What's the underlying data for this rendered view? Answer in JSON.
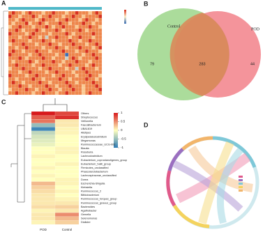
{
  "chart_data": [
    {
      "type": "heatmap",
      "label": "A",
      "clim": [
        -2,
        2
      ],
      "matrix": [
        [
          1,
          2,
          1,
          1,
          0,
          1,
          2,
          1,
          1,
          1,
          0,
          1,
          1,
          2,
          1,
          1,
          1,
          0,
          1,
          1,
          2,
          1,
          1,
          1,
          0,
          1,
          2,
          1
        ],
        [
          2,
          1,
          1,
          0,
          1,
          1,
          1,
          2,
          1,
          0,
          1,
          1,
          2,
          1,
          1,
          1,
          0,
          1,
          1,
          2,
          1,
          1,
          0,
          1,
          1,
          1,
          1,
          2
        ],
        [
          1,
          1,
          0,
          1,
          2,
          1,
          1,
          1,
          0,
          1,
          2,
          1,
          1,
          1,
          0,
          1,
          1,
          2,
          1,
          1,
          1,
          0,
          1,
          2,
          1,
          1,
          0,
          1
        ],
        [
          1,
          0,
          1,
          1,
          1,
          2,
          0,
          1,
          1,
          2,
          1,
          0,
          1,
          1,
          1,
          2,
          1,
          1,
          0,
          1,
          1,
          1,
          2,
          1,
          1,
          0,
          1,
          1
        ],
        [
          0,
          1,
          1,
          2,
          1,
          1,
          1,
          0,
          1,
          1,
          1,
          2,
          1,
          0,
          1,
          1,
          2,
          1,
          1,
          1,
          0,
          1,
          1,
          1,
          2,
          1,
          1,
          0
        ],
        [
          1,
          1,
          2,
          1,
          0,
          1,
          1,
          1,
          2,
          1,
          0,
          1,
          1,
          1,
          2,
          1,
          0,
          1,
          1,
          1,
          1,
          2,
          1,
          0,
          1,
          1,
          1,
          1
        ],
        [
          2,
          1,
          1,
          1,
          1,
          0,
          1,
          2,
          1,
          1,
          1,
          1,
          0,
          1,
          1,
          1,
          1,
          2,
          1,
          0,
          1,
          1,
          1,
          1,
          1,
          2,
          1,
          1
        ],
        [
          1,
          1,
          1,
          0,
          1,
          1,
          2,
          1,
          1,
          0,
          1,
          -1,
          1,
          1,
          2,
          1,
          1,
          1,
          0,
          1,
          1,
          2,
          1,
          1,
          1,
          0,
          1,
          1
        ],
        [
          1,
          2,
          1,
          1,
          1,
          1,
          0,
          1,
          1,
          1,
          2,
          1,
          1,
          0,
          1,
          1,
          1,
          1,
          2,
          1,
          1,
          0,
          1,
          1,
          2,
          1,
          1,
          1
        ],
        [
          0,
          1,
          1,
          1,
          2,
          1,
          1,
          1,
          0,
          1,
          1,
          1,
          2,
          1,
          1,
          0,
          1,
          1,
          1,
          2,
          1,
          1,
          1,
          0,
          1,
          1,
          2,
          1
        ],
        [
          1,
          1,
          0,
          1,
          1,
          2,
          1,
          1,
          1,
          1,
          0,
          1,
          1,
          1,
          2,
          1,
          1,
          0,
          1,
          1,
          1,
          2,
          1,
          1,
          1,
          0,
          1,
          2
        ],
        [
          1,
          2,
          1,
          1,
          0,
          1,
          1,
          1,
          2,
          1,
          1,
          1,
          0,
          1,
          1,
          1,
          2,
          1,
          1,
          1,
          0,
          1,
          1,
          2,
          1,
          1,
          1,
          0
        ],
        [
          2,
          1,
          1,
          1,
          1,
          1,
          0,
          1,
          1,
          2,
          1,
          1,
          1,
          1,
          0,
          1,
          1,
          -2,
          1,
          1,
          1,
          1,
          0,
          1,
          1,
          2,
          1,
          1
        ],
        [
          1,
          1,
          1,
          2,
          1,
          0,
          1,
          1,
          1,
          1,
          2,
          1,
          1,
          0,
          1,
          1,
          1,
          -1,
          1,
          2,
          1,
          0,
          1,
          1,
          1,
          1,
          2,
          1
        ],
        [
          1,
          0,
          1,
          1,
          1,
          1,
          2,
          1,
          0,
          1,
          1,
          1,
          1,
          2,
          1,
          1,
          0,
          1,
          1,
          1,
          2,
          1,
          1,
          1,
          0,
          1,
          1,
          1
        ],
        [
          1,
          1,
          2,
          1,
          1,
          1,
          1,
          0,
          1,
          1,
          2,
          1,
          1,
          1,
          1,
          0,
          1,
          1,
          2,
          1,
          1,
          1,
          1,
          0,
          1,
          2,
          1,
          1
        ],
        [
          0,
          1,
          1,
          1,
          2,
          1,
          1,
          1,
          1,
          0,
          1,
          1,
          2,
          1,
          1,
          1,
          1,
          0,
          1,
          1,
          -1,
          1,
          2,
          1,
          1,
          1,
          0,
          1
        ],
        [
          1,
          1,
          1,
          0,
          1,
          1,
          2,
          1,
          1,
          1,
          1,
          0,
          1,
          1,
          2,
          1,
          1,
          1,
          1,
          0,
          1,
          1,
          1,
          2,
          1,
          1,
          1,
          1
        ],
        [
          2,
          1,
          1,
          1,
          1,
          0,
          1,
          1,
          2,
          1,
          1,
          1,
          1,
          0,
          1,
          1,
          2,
          1,
          1,
          1,
          0,
          1,
          1,
          1,
          2,
          1,
          1,
          0
        ],
        [
          1,
          1,
          0,
          1,
          1,
          1,
          1,
          2,
          1,
          1,
          0,
          1,
          1,
          1,
          1,
          2,
          1,
          1,
          0,
          1,
          1,
          1,
          1,
          2,
          1,
          1,
          0,
          1
        ],
        [
          1,
          2,
          1,
          1,
          0,
          1,
          1,
          1,
          1,
          2,
          1,
          1,
          0,
          1,
          1,
          1,
          1,
          2,
          1,
          1,
          0,
          1,
          1,
          1,
          1,
          2,
          1,
          1
        ],
        [
          1,
          1,
          1,
          2,
          1,
          1,
          0,
          1,
          1,
          1,
          1,
          2,
          1,
          1,
          0,
          1,
          1,
          1,
          2,
          1,
          1,
          1,
          0,
          1,
          1,
          1,
          2,
          1
        ],
        [
          0,
          1,
          1,
          1,
          1,
          2,
          1,
          1,
          0,
          1,
          1,
          1,
          2,
          1,
          1,
          0,
          1,
          1,
          1,
          2,
          1,
          1,
          0,
          1,
          1,
          1,
          1,
          2
        ],
        [
          1,
          1,
          2,
          1,
          1,
          1,
          1,
          0,
          1,
          1,
          2,
          1,
          1,
          1,
          0,
          1,
          1,
          2,
          1,
          1,
          1,
          1,
          0,
          1,
          2,
          1,
          1,
          1
        ]
      ]
    },
    {
      "type": "venn",
      "label": "B",
      "sets": [
        {
          "name": "Control",
          "color": "#8fd07a"
        },
        {
          "name": "POD",
          "color": "#f0707a"
        }
      ],
      "values": [
        79,
        283,
        44
      ]
    },
    {
      "type": "heatmap",
      "label": "C",
      "clim": [
        -1,
        1
      ],
      "columns": [
        "POD",
        "Control"
      ],
      "rows": [
        "Others",
        "Streptococcus",
        "Veillonella",
        "Faecalibacterium",
        "UBA1819",
        "Alistipes",
        "Erysipelatoclostridium",
        "Megamonas",
        "Ruminococcaceae_UCG-002",
        "Blautia",
        "Roseburia",
        "Lachnoclostridium",
        "Eubacterium_coprostanoligenes_group",
        "Eubacterium_hallii_group",
        "Firmicutes_unclassified",
        "Phascolarctobacterium",
        "Lachnospiraceae_unclassified",
        "Dorea",
        "Escherichia-Shigella",
        "Klebsiella",
        "Ruminococcus_2",
        "Bifidobacterium",
        "Ruminococcus_torques_group",
        "Ruminococcus_gnavus_group",
        "Bacteroides",
        "Agathobacter",
        "Gemella",
        "Selenomonas",
        "Dialister"
      ],
      "matrix": [
        [
          1.0,
          0.8
        ],
        [
          0.7,
          0.9
        ],
        [
          0.6,
          0.1
        ],
        [
          -0.5,
          0.1
        ],
        [
          -0.9,
          0.05
        ],
        [
          -0.3,
          0.05
        ],
        [
          -0.2,
          0
        ],
        [
          -0.15,
          0
        ],
        [
          -0.1,
          0
        ],
        [
          0,
          0.05
        ],
        [
          0,
          0.05
        ],
        [
          0.05,
          0
        ],
        [
          0,
          0
        ],
        [
          0,
          0.05
        ],
        [
          0.05,
          0
        ],
        [
          0,
          0
        ],
        [
          0.05,
          0
        ],
        [
          0,
          0.05
        ],
        [
          0.3,
          0.05
        ],
        [
          0.2,
          0
        ],
        [
          0.15,
          0.05
        ],
        [
          0.1,
          0
        ],
        [
          0.1,
          0.05
        ],
        [
          0.1,
          0.1
        ],
        [
          0.15,
          0.2
        ],
        [
          0.05,
          0.1
        ],
        [
          0.1,
          0.5
        ],
        [
          0.1,
          0.3
        ],
        [
          0.05,
          0.2
        ]
      ],
      "colorbar_ticks": [
        1,
        0.5,
        0,
        -0.5,
        -1
      ]
    },
    {
      "type": "chord",
      "label": "D"
    }
  ]
}
